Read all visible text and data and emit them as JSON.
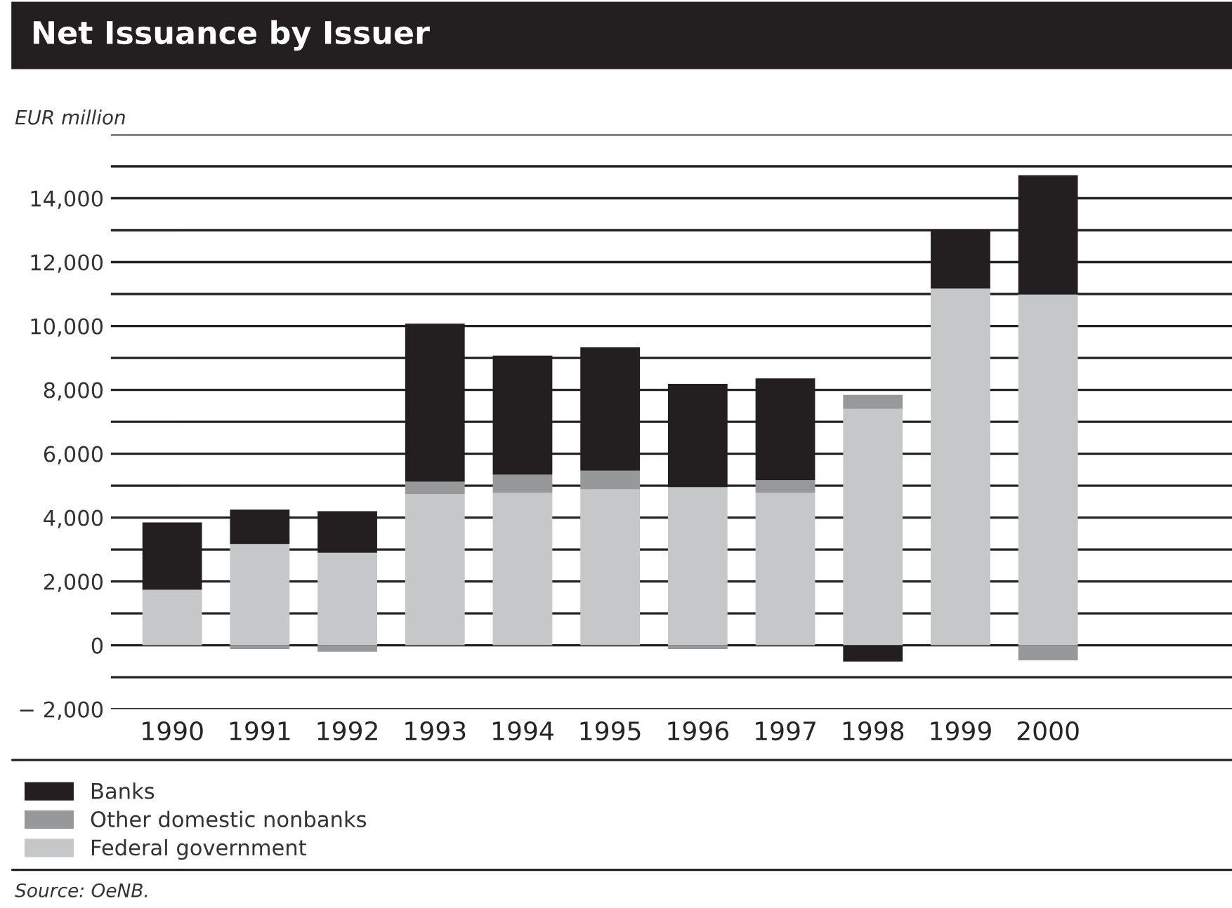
{
  "chart_data": {
    "type": "bar",
    "title": "Net Issuance by Issuer",
    "ylabel": "EUR million",
    "categories": [
      "1990",
      "1991",
      "1992",
      "1993",
      "1994",
      "1995",
      "1996",
      "1997",
      "1998",
      "1999",
      "2000"
    ],
    "stacked": true,
    "series": [
      {
        "name": "Federal government",
        "color": "#c6c7c9",
        "values": [
          1740,
          3170,
          2900,
          4740,
          4770,
          4880,
          4950,
          4770,
          7400,
          11170,
          10990
        ]
      },
      {
        "name": "Other domestic nonbanks",
        "color": "#97989a",
        "values": [
          0,
          -120,
          -200,
          380,
          570,
          590,
          -120,
          400,
          440,
          0,
          -470
        ]
      },
      {
        "name": "Banks",
        "color": "#231f20",
        "values": [
          2110,
          1080,
          1300,
          4950,
          3730,
          3860,
          3240,
          3190,
          -510,
          1840,
          3730
        ]
      }
    ],
    "ylim": [
      -2000,
      16000
    ],
    "yticks": [
      {
        "value": -2000,
        "label": "− 2,000"
      },
      {
        "value": -1000,
        "label": null
      },
      {
        "value": 0,
        "label": "0"
      },
      {
        "value": 1000,
        "label": null
      },
      {
        "value": 2000,
        "label": "2,000"
      },
      {
        "value": 3000,
        "label": null
      },
      {
        "value": 4000,
        "label": "4,000"
      },
      {
        "value": 5000,
        "label": null
      },
      {
        "value": 6000,
        "label": "6,000"
      },
      {
        "value": 7000,
        "label": null
      },
      {
        "value": 8000,
        "label": "8,000"
      },
      {
        "value": 9000,
        "label": null
      },
      {
        "value": 10000,
        "label": "10,000"
      },
      {
        "value": 11000,
        "label": null
      },
      {
        "value": 12000,
        "label": "12,000"
      },
      {
        "value": 13000,
        "label": null
      },
      {
        "value": 14000,
        "label": "14,000"
      },
      {
        "value": 15000,
        "label": null
      },
      {
        "value": 16000,
        "label": null
      }
    ],
    "grid": "y",
    "legend": "bottom",
    "annotations": [
      "Source: OeNB."
    ]
  }
}
